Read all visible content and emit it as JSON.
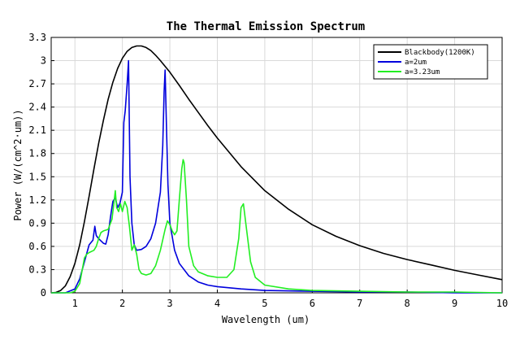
{
  "chart_data": {
    "type": "line",
    "title": "The Thermal Emission Spectrum",
    "xlabel": "Wavelength (um)",
    "ylabel": "Power (W/(cm^2·um))",
    "xlim": [
      0.5,
      10
    ],
    "ylim": [
      0,
      3.3
    ],
    "xticks": [
      1,
      2,
      3,
      4,
      5,
      6,
      7,
      8,
      9,
      10
    ],
    "yticks": [
      0,
      0.3,
      0.6,
      0.9,
      1.2,
      1.5,
      1.8,
      2.1,
      2.4,
      2.7,
      3,
      3.3
    ],
    "grid": true,
    "legend_position": "top-right",
    "series": [
      {
        "name": "Blackbody(1200K)",
        "color": "#000000",
        "x": [
          0.5,
          0.6,
          0.7,
          0.8,
          0.9,
          1.0,
          1.1,
          1.2,
          1.3,
          1.4,
          1.5,
          1.6,
          1.7,
          1.8,
          1.9,
          2.0,
          2.1,
          2.2,
          2.3,
          2.4,
          2.5,
          2.6,
          2.7,
          2.8,
          3.0,
          3.2,
          3.4,
          3.6,
          3.8,
          4.0,
          4.5,
          5.0,
          5.5,
          6.0,
          6.5,
          7.0,
          7.5,
          8.0,
          8.5,
          9.0,
          9.5,
          10.0
        ],
        "y": [
          0.0,
          0.005,
          0.03,
          0.09,
          0.21,
          0.38,
          0.62,
          0.92,
          1.25,
          1.6,
          1.93,
          2.23,
          2.5,
          2.72,
          2.9,
          3.03,
          3.12,
          3.17,
          3.19,
          3.19,
          3.17,
          3.13,
          3.07,
          3.0,
          2.85,
          2.68,
          2.5,
          2.33,
          2.16,
          2.0,
          1.63,
          1.32,
          1.08,
          0.88,
          0.73,
          0.61,
          0.51,
          0.43,
          0.36,
          0.29,
          0.23,
          0.17
        ]
      },
      {
        "name": "a=2um",
        "color": "#0000dd",
        "x": [
          0.5,
          0.8,
          1.0,
          1.1,
          1.2,
          1.3,
          1.38,
          1.42,
          1.45,
          1.5,
          1.55,
          1.6,
          1.65,
          1.7,
          1.75,
          1.8,
          1.85,
          1.9,
          1.95,
          2.0,
          2.03,
          2.06,
          2.1,
          2.13,
          2.16,
          2.2,
          2.25,
          2.3,
          2.4,
          2.5,
          2.6,
          2.7,
          2.8,
          2.85,
          2.88,
          2.9,
          2.93,
          2.96,
          3.0,
          3.1,
          3.2,
          3.4,
          3.6,
          3.8,
          4.0,
          4.5,
          5.0,
          6.0,
          7.0,
          8.0,
          9.0,
          10.0
        ],
        "y": [
          0.0,
          0.0,
          0.05,
          0.18,
          0.4,
          0.62,
          0.68,
          0.86,
          0.74,
          0.7,
          0.67,
          0.64,
          0.63,
          0.75,
          0.98,
          1.18,
          1.23,
          1.1,
          1.16,
          1.3,
          2.2,
          2.35,
          2.7,
          3.0,
          1.5,
          0.9,
          0.62,
          0.55,
          0.56,
          0.6,
          0.7,
          0.9,
          1.3,
          1.9,
          2.6,
          2.88,
          2.1,
          1.4,
          0.9,
          0.55,
          0.38,
          0.22,
          0.14,
          0.1,
          0.08,
          0.05,
          0.03,
          0.02,
          0.01,
          0.01,
          0.0,
          0.0
        ]
      },
      {
        "name": "a=3.23um",
        "color": "#22ee22",
        "x": [
          0.5,
          0.9,
          1.0,
          1.1,
          1.2,
          1.25,
          1.3,
          1.4,
          1.45,
          1.5,
          1.55,
          1.6,
          1.7,
          1.78,
          1.82,
          1.85,
          1.88,
          1.92,
          1.96,
          2.0,
          2.05,
          2.1,
          2.15,
          2.2,
          2.25,
          2.3,
          2.35,
          2.4,
          2.5,
          2.6,
          2.7,
          2.8,
          2.9,
          2.95,
          3.0,
          3.05,
          3.1,
          3.15,
          3.2,
          3.25,
          3.28,
          3.3,
          3.35,
          3.4,
          3.5,
          3.6,
          3.8,
          4.0,
          4.2,
          4.35,
          4.45,
          4.5,
          4.55,
          4.6,
          4.7,
          4.8,
          5.0,
          5.5,
          6.0,
          7.0,
          8.0,
          9.0,
          10.0
        ],
        "y": [
          0.0,
          0.0,
          0.02,
          0.12,
          0.45,
          0.5,
          0.52,
          0.55,
          0.6,
          0.7,
          0.78,
          0.8,
          0.82,
          0.95,
          1.15,
          1.32,
          1.1,
          1.05,
          1.15,
          1.05,
          1.18,
          1.1,
          0.85,
          0.55,
          0.62,
          0.5,
          0.3,
          0.25,
          0.23,
          0.25,
          0.35,
          0.55,
          0.82,
          0.93,
          0.88,
          0.8,
          0.75,
          0.8,
          1.2,
          1.6,
          1.72,
          1.68,
          1.2,
          0.6,
          0.35,
          0.27,
          0.22,
          0.2,
          0.2,
          0.3,
          0.7,
          1.1,
          1.15,
          0.9,
          0.4,
          0.2,
          0.1,
          0.05,
          0.03,
          0.02,
          0.01,
          0.01,
          0.0
        ]
      }
    ]
  }
}
